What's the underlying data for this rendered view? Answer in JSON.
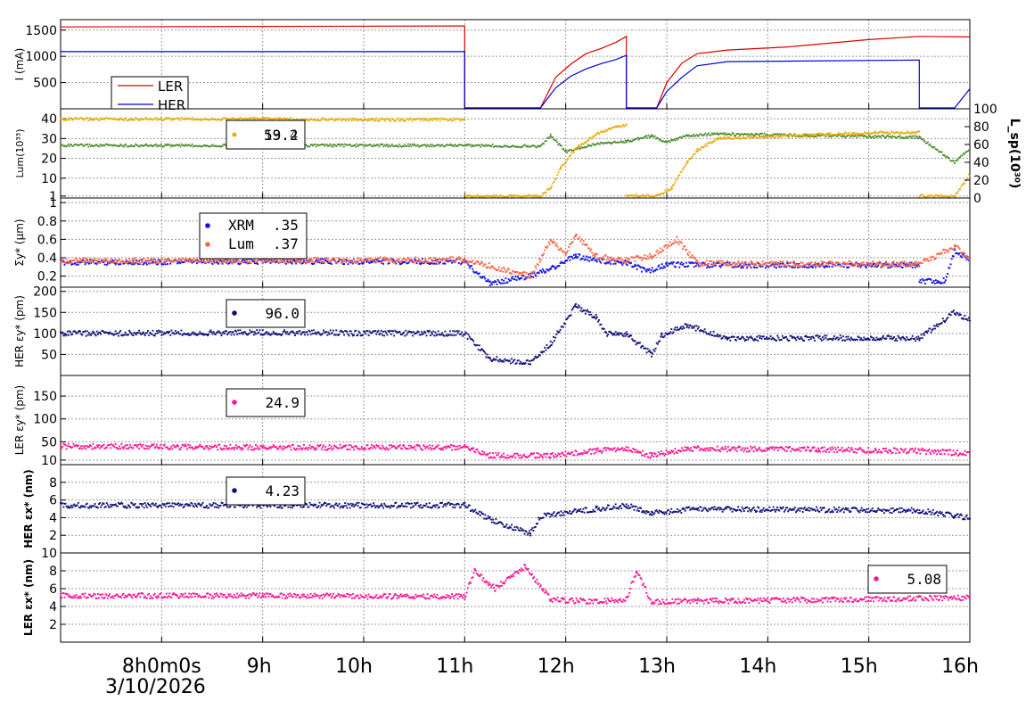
{
  "chart_data": [
    {
      "type": "line",
      "panel": "beam-current",
      "ylabel": "I (mA)",
      "y_ticks": [
        "500",
        "1000",
        "1500"
      ],
      "ylim": [
        0,
        1700
      ],
      "legend": [
        "LER",
        "HER"
      ],
      "colors": {
        "LER": "#dd0000",
        "HER": "#0000dd"
      },
      "series": [
        {
          "name": "LER",
          "points": [
            [
              7.0,
              1560
            ],
            [
              11.0,
              1580
            ],
            [
              11.0,
              5
            ],
            [
              11.75,
              5
            ],
            [
              11.9,
              600
            ],
            [
              12.05,
              850
            ],
            [
              12.2,
              1050
            ],
            [
              12.35,
              1150
            ],
            [
              12.5,
              1270
            ],
            [
              12.6,
              1380
            ],
            [
              12.6,
              5
            ],
            [
              12.9,
              5
            ],
            [
              13.0,
              500
            ],
            [
              13.15,
              870
            ],
            [
              13.3,
              1050
            ],
            [
              13.6,
              1120
            ],
            [
              14.2,
              1180
            ],
            [
              15.0,
              1320
            ],
            [
              15.5,
              1380
            ],
            [
              16.0,
              1370
            ]
          ]
        },
        {
          "name": "HER",
          "points": [
            [
              7.0,
              1090
            ],
            [
              11.0,
              1090
            ],
            [
              11.0,
              5
            ],
            [
              11.75,
              5
            ],
            [
              11.9,
              400
            ],
            [
              12.05,
              620
            ],
            [
              12.2,
              760
            ],
            [
              12.35,
              860
            ],
            [
              12.5,
              940
            ],
            [
              12.6,
              1020
            ],
            [
              12.6,
              5
            ],
            [
              12.9,
              5
            ],
            [
              13.0,
              330
            ],
            [
              13.15,
              600
            ],
            [
              13.3,
              820
            ],
            [
              13.6,
              900
            ],
            [
              15.5,
              930
            ],
            [
              15.5,
              5
            ],
            [
              15.85,
              5
            ],
            [
              16.0,
              380
            ]
          ]
        }
      ]
    },
    {
      "type": "line",
      "panel": "luminosity",
      "ylabel": "Lum(10³³)",
      "y2label": "L_sp(10³⁰)",
      "y_ticks": [
        "1",
        "10",
        "20",
        "30",
        "40"
      ],
      "y2_ticks": [
        "0",
        "20",
        "40",
        "60",
        "80",
        "100"
      ],
      "legend_values": [
        "59.2",
        "13.4"
      ],
      "colors": {
        "lum": "#e8a800",
        "lsp": "#4a8a2a"
      },
      "series": [
        {
          "name": "lum",
          "points": [
            [
              7.0,
              39.8
            ],
            [
              9.0,
              40.0
            ],
            [
              10.0,
              39.5
            ],
            [
              11.0,
              39.6
            ],
            [
              11.0,
              1
            ],
            [
              11.75,
              1
            ],
            [
              11.85,
              5
            ],
            [
              11.95,
              15
            ],
            [
              12.1,
              25
            ],
            [
              12.3,
              32
            ],
            [
              12.5,
              36
            ],
            [
              12.6,
              37
            ],
            [
              12.6,
              1
            ],
            [
              12.9,
              1
            ],
            [
              13.05,
              5
            ],
            [
              13.2,
              18
            ],
            [
              13.3,
              24
            ],
            [
              13.5,
              30
            ],
            [
              14.0,
              31
            ],
            [
              15.0,
              33
            ],
            [
              15.5,
              33
            ],
            [
              15.5,
              1
            ],
            [
              15.85,
              1
            ],
            [
              16.0,
              12
            ]
          ]
        },
        {
          "name": "lsp",
          "points": [
            [
              7.0,
              59
            ],
            [
              11.0,
              59
            ],
            [
              11.75,
              58
            ],
            [
              11.85,
              70
            ],
            [
              12.0,
              52
            ],
            [
              12.2,
              58
            ],
            [
              12.4,
              62
            ],
            [
              12.6,
              63
            ],
            [
              12.85,
              70
            ],
            [
              13.0,
              62
            ],
            [
              13.2,
              70
            ],
            [
              13.5,
              72
            ],
            [
              14.5,
              70
            ],
            [
              15.5,
              68
            ],
            [
              15.85,
              40
            ],
            [
              16.0,
              55
            ]
          ]
        }
      ]
    },
    {
      "type": "scatter",
      "panel": "beam-size",
      "ylabel": "Σy* (μm)",
      "y_ticks": [
        "0.2",
        "0.4",
        "0.6",
        "0.8",
        "1"
      ],
      "legend": [
        {
          "name": "XRM",
          "value": ".35"
        },
        {
          "name": "Lum",
          "value": ".37"
        }
      ],
      "colors": {
        "XRM": "#1010ee",
        "Lum": "#ff6644"
      },
      "series": [
        {
          "name": "XRM",
          "points": [
            [
              7.0,
              0.35
            ],
            [
              9.0,
              0.36
            ],
            [
              11.0,
              0.36
            ],
            [
              11.25,
              0.12
            ],
            [
              11.65,
              0.2
            ],
            [
              11.85,
              0.28
            ],
            [
              12.1,
              0.42
            ],
            [
              12.3,
              0.37
            ],
            [
              12.6,
              0.35
            ],
            [
              12.8,
              0.25
            ],
            [
              13.0,
              0.33
            ],
            [
              13.3,
              0.32
            ],
            [
              15.5,
              0.32
            ],
            [
              15.5,
              0.14
            ],
            [
              15.75,
              0.15
            ],
            [
              15.85,
              0.47
            ],
            [
              16.0,
              0.38
            ]
          ]
        },
        {
          "name": "Lum",
          "points": [
            [
              7.0,
              0.37
            ],
            [
              9.0,
              0.37
            ],
            [
              11.0,
              0.38
            ],
            [
              11.65,
              0.2
            ],
            [
              11.85,
              0.58
            ],
            [
              12.0,
              0.45
            ],
            [
              12.1,
              0.65
            ],
            [
              12.3,
              0.42
            ],
            [
              12.6,
              0.37
            ],
            [
              12.85,
              0.42
            ],
            [
              13.1,
              0.6
            ],
            [
              13.3,
              0.34
            ],
            [
              15.5,
              0.33
            ],
            [
              15.85,
              0.52
            ],
            [
              16.0,
              0.4
            ]
          ]
        }
      ]
    },
    {
      "type": "scatter",
      "panel": "her-vertical-emittance",
      "ylabel": "HER εy* (pm)",
      "y_ticks": [
        "50",
        "100",
        "150",
        "200"
      ],
      "legend_value": "96.0",
      "color": "#10107a",
      "points": [
        [
          7.0,
          100
        ],
        [
          9.0,
          102
        ],
        [
          11.0,
          100
        ],
        [
          11.25,
          40
        ],
        [
          11.65,
          30
        ],
        [
          11.85,
          75
        ],
        [
          12.1,
          165
        ],
        [
          12.3,
          140
        ],
        [
          12.4,
          100
        ],
        [
          12.6,
          98
        ],
        [
          12.85,
          50
        ],
        [
          12.95,
          95
        ],
        [
          13.2,
          120
        ],
        [
          13.6,
          88
        ],
        [
          15.0,
          90
        ],
        [
          15.5,
          88
        ],
        [
          15.85,
          150
        ],
        [
          16.0,
          130
        ]
      ]
    },
    {
      "type": "scatter",
      "panel": "ler-vertical-emittance",
      "ylabel": "LER εy* (pm)",
      "y_ticks": [
        "10",
        "50",
        "100",
        "150"
      ],
      "legend_value": "24.9",
      "color": "#ff1493",
      "points": [
        [
          7.0,
          40
        ],
        [
          9.0,
          38
        ],
        [
          11.0,
          38
        ],
        [
          11.25,
          20
        ],
        [
          11.85,
          20
        ],
        [
          12.3,
          30
        ],
        [
          12.6,
          35
        ],
        [
          12.85,
          20
        ],
        [
          13.2,
          35
        ],
        [
          14.5,
          33
        ],
        [
          15.5,
          30
        ],
        [
          16.0,
          24
        ]
      ]
    },
    {
      "type": "scatter",
      "panel": "her-horizontal-emittance",
      "ylabel": "HER εx* (nm)",
      "y_ticks": [
        "2",
        "4",
        "6",
        "8"
      ],
      "legend_value": "4.23",
      "color": "#10107a",
      "points": [
        [
          7.0,
          5.4
        ],
        [
          9.0,
          5.4
        ],
        [
          11.0,
          5.4
        ],
        [
          11.25,
          3.8
        ],
        [
          11.65,
          2.2
        ],
        [
          11.75,
          4.2
        ],
        [
          12.3,
          5.0
        ],
        [
          12.6,
          5.4
        ],
        [
          12.85,
          4.5
        ],
        [
          13.3,
          5.0
        ],
        [
          15.5,
          4.8
        ],
        [
          15.85,
          4.2
        ],
        [
          16.0,
          4.0
        ]
      ]
    },
    {
      "type": "scatter",
      "panel": "ler-horizontal-emittance",
      "ylabel": "LER εx* (nm)",
      "y_ticks": [
        "2",
        "4",
        "6",
        "8",
        "10"
      ],
      "legend_value": "5.08",
      "color": "#ff1493",
      "x_ticks": [
        "8h0m0s",
        "9h",
        "10h",
        "11h",
        "12h",
        "13h",
        "14h",
        "15h",
        "16h"
      ],
      "x_values": [
        8,
        9,
        10,
        11,
        12,
        13,
        14,
        15,
        16
      ],
      "xlim": [
        7.0,
        16.0
      ],
      "date": "3/10/2026",
      "points": [
        [
          7.0,
          5.2
        ],
        [
          9.0,
          5.2
        ],
        [
          11.0,
          5.1
        ],
        [
          11.1,
          8.0
        ],
        [
          11.3,
          6.0
        ],
        [
          11.6,
          8.5
        ],
        [
          11.85,
          4.8
        ],
        [
          12.3,
          4.5
        ],
        [
          12.6,
          4.8
        ],
        [
          12.7,
          8.0
        ],
        [
          12.85,
          4.5
        ],
        [
          13.3,
          4.6
        ],
        [
          15.0,
          4.8
        ],
        [
          16.0,
          5.0
        ]
      ]
    }
  ]
}
